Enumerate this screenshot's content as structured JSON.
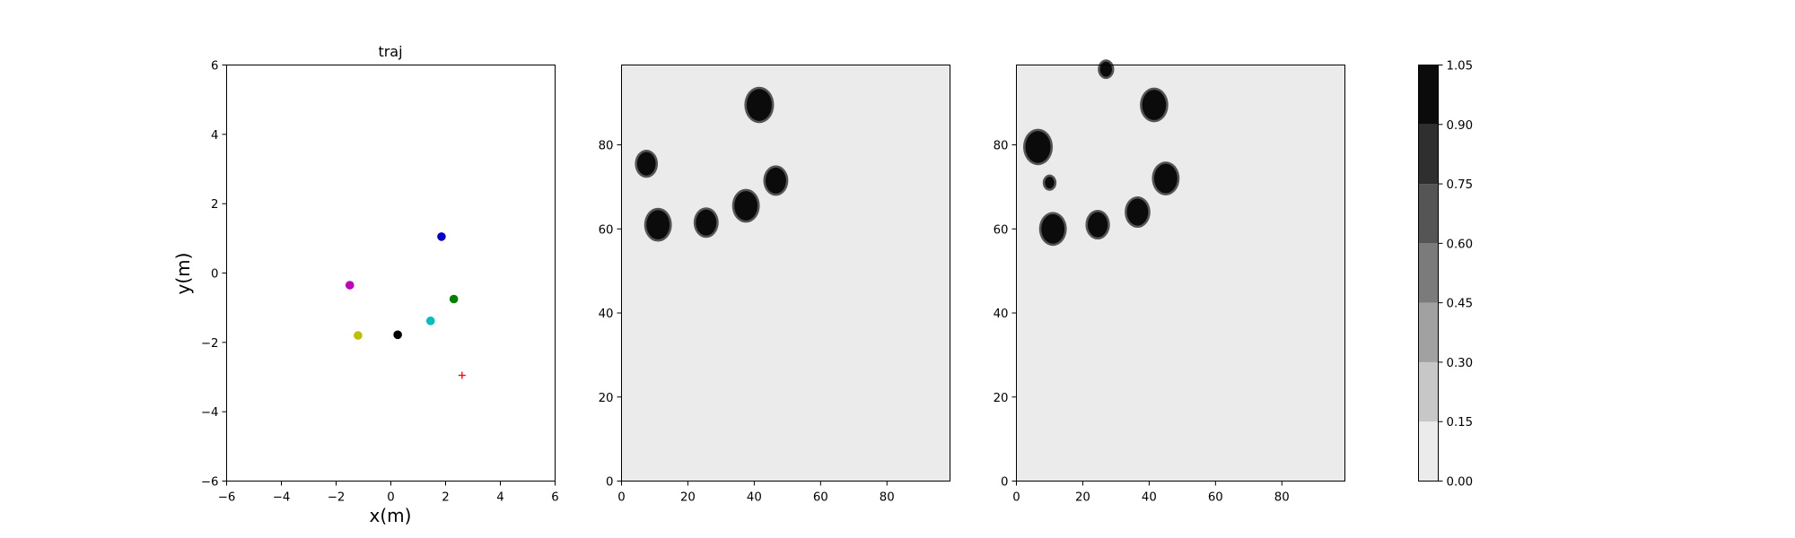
{
  "chart_data": [
    {
      "type": "scatter",
      "title": "traj",
      "xlabel": "x(m)",
      "ylabel": "y(m)",
      "xlim": [
        -6,
        6
      ],
      "ylim": [
        -6,
        6
      ],
      "xticks": [
        -6,
        -4,
        -2,
        0,
        2,
        4,
        6
      ],
      "yticks": [
        -6,
        -4,
        -2,
        0,
        2,
        4,
        6
      ],
      "xtick_labels": [
        "−6",
        "−4",
        "−2",
        "0",
        "2",
        "4",
        "6"
      ],
      "ytick_labels": [
        "−6",
        "−4",
        "−2",
        "0",
        "2",
        "4",
        "6"
      ],
      "grid": false,
      "points": [
        {
          "x": 1.85,
          "y": 1.05,
          "color": "#0000cc",
          "marker": "circle"
        },
        {
          "x": -1.5,
          "y": -0.35,
          "color": "#bf00bf",
          "marker": "circle"
        },
        {
          "x": 2.3,
          "y": -0.75,
          "color": "#008000",
          "marker": "circle"
        },
        {
          "x": 1.45,
          "y": -1.38,
          "color": "#00bfbf",
          "marker": "circle"
        },
        {
          "x": 0.25,
          "y": -1.78,
          "color": "#000000",
          "marker": "circle"
        },
        {
          "x": -1.2,
          "y": -1.8,
          "color": "#bfbf00",
          "marker": "circle"
        },
        {
          "x": 2.6,
          "y": -2.95,
          "color": "#ff0000",
          "marker": "plus"
        }
      ]
    },
    {
      "type": "heatmap",
      "xlim": [
        0,
        99
      ],
      "ylim": [
        0,
        99
      ],
      "xticks": [
        0,
        20,
        40,
        60,
        80
      ],
      "yticks": [
        0,
        20,
        40,
        60,
        80
      ],
      "xtick_labels": [
        "0",
        "20",
        "40",
        "60",
        "80"
      ],
      "ytick_labels": [
        "0",
        "20",
        "40",
        "60",
        "80"
      ],
      "background_value": 0.05,
      "blobs": [
        {
          "x": 41.5,
          "y": 89.5,
          "r": 3.8
        },
        {
          "x": 7.5,
          "y": 75.5,
          "r": 2.8
        },
        {
          "x": 46.5,
          "y": 71.5,
          "r": 3.1
        },
        {
          "x": 37.5,
          "y": 65.5,
          "r": 3.5
        },
        {
          "x": 11,
          "y": 61,
          "r": 3.5
        },
        {
          "x": 25.5,
          "y": 61.5,
          "r": 3.1
        }
      ]
    },
    {
      "type": "heatmap",
      "xlim": [
        0,
        99
      ],
      "ylim": [
        0,
        99
      ],
      "xticks": [
        0,
        20,
        40,
        60,
        80
      ],
      "yticks": [
        0,
        20,
        40,
        60,
        80
      ],
      "xtick_labels": [
        "0",
        "20",
        "40",
        "60",
        "80"
      ],
      "ytick_labels": [
        "0",
        "20",
        "40",
        "60",
        "80"
      ],
      "background_value": 0.05,
      "blobs": [
        {
          "x": 27,
          "y": 98,
          "r": 1.8
        },
        {
          "x": 41.5,
          "y": 89.5,
          "r": 3.6
        },
        {
          "x": 6.5,
          "y": 79.5,
          "r": 3.8
        },
        {
          "x": 45,
          "y": 72,
          "r": 3.5
        },
        {
          "x": 10,
          "y": 71,
          "r": 1.4
        },
        {
          "x": 36.5,
          "y": 64,
          "r": 3.2
        },
        {
          "x": 24.5,
          "y": 61,
          "r": 3
        },
        {
          "x": 11,
          "y": 60,
          "r": 3.5
        }
      ]
    },
    {
      "type": "colorbar",
      "levels": [
        0.0,
        0.15,
        0.3,
        0.45,
        0.6,
        0.75,
        0.9,
        1.05
      ],
      "level_labels": [
        "0.00",
        "0.15",
        "0.30",
        "0.45",
        "0.60",
        "0.75",
        "0.90",
        "1.05"
      ],
      "colors": [
        "#ebebeb",
        "#c7c7c7",
        "#a1a1a1",
        "#7b7b7b",
        "#555555",
        "#2f2f2f",
        "#0b0b0b"
      ]
    }
  ]
}
